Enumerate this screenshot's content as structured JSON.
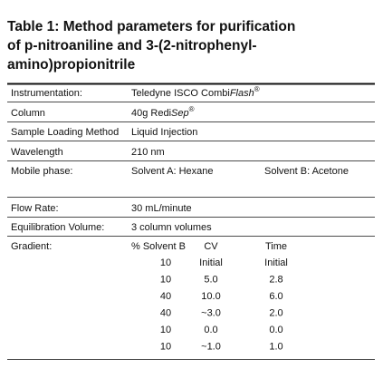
{
  "title": {
    "lines": [
      "Table 1: Method parameters for purification",
      "of p-nitroaniline and 3-(2-nitrophenyl-",
      "amino)propionitrile"
    ]
  },
  "table": {
    "instrumentation": {
      "label": "Instrumentation:",
      "text": "Teledyne ISCO Combi",
      "italic": "Flash",
      "mark": "®"
    },
    "column": {
      "label": "Column",
      "text": "40g Redi",
      "italic": "Sep",
      "mark": "®"
    },
    "loading": {
      "label": "Sample Loading Method",
      "value": "Liquid Injection"
    },
    "wavelength": {
      "label": "Wavelength",
      "value": "210 nm"
    },
    "mobile_phase": {
      "label": "Mobile phase:",
      "solvent_a": "Solvent A: Hexane",
      "solvent_b": "Solvent B: Acetone"
    },
    "flow_rate": {
      "label": "Flow Rate:",
      "value": "30 mL/minute"
    },
    "equilibration": {
      "label": "Equilibration Volume:",
      "value": "3 column volumes"
    },
    "gradient": {
      "label": "Gradient:",
      "headers": [
        "% Solvent B",
        "CV",
        "Time"
      ],
      "rows": [
        [
          "10",
          "Initial",
          "Initial"
        ],
        [
          "10",
          "5.0",
          "2.8"
        ],
        [
          "40",
          "10.0",
          "6.0"
        ],
        [
          "40",
          "~3.0",
          "2.0"
        ],
        [
          "10",
          "0.0",
          "0.0"
        ],
        [
          "10",
          "~1.0",
          "1.0"
        ]
      ]
    }
  }
}
